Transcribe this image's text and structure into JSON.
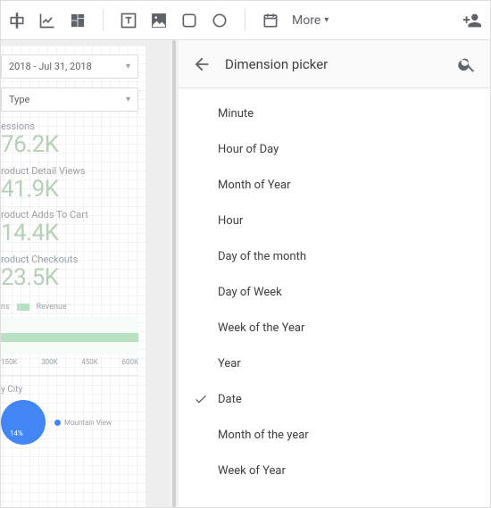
{
  "toolbar": {
    "more_label": "More"
  },
  "canvas": {
    "date_range": "2018 - Jul 31, 2018",
    "type_label": "Type",
    "metrics": [
      {
        "label": "essions",
        "value": "76.2K"
      },
      {
        "label": "roduct Detail Views",
        "value": "41.9K"
      },
      {
        "label": "roduct Adds To Cart",
        "value": "14.4K"
      },
      {
        "label": "roduct Checkouts",
        "value": "23.5K"
      }
    ],
    "legend": {
      "series": "ns",
      "series2": "Revenue",
      "bar_color": "#b7e1c1"
    },
    "xaxis": [
      "150K",
      "300K",
      "450K",
      "600K"
    ],
    "city_label": "y City",
    "pie": {
      "percent": "14%",
      "slice_color": "#4285f4",
      "legend_item": "Mountain View"
    }
  },
  "panel": {
    "title": "Dimension picker",
    "items": [
      {
        "label": "Minute",
        "selected": false
      },
      {
        "label": "Hour of Day",
        "selected": false
      },
      {
        "label": "Month of Year",
        "selected": false
      },
      {
        "label": "Hour",
        "selected": false
      },
      {
        "label": "Day of the month",
        "selected": false
      },
      {
        "label": "Day of Week",
        "selected": false
      },
      {
        "label": "Week of the Year",
        "selected": false
      },
      {
        "label": "Year",
        "selected": false
      },
      {
        "label": "Date",
        "selected": true
      },
      {
        "label": "Month of the year",
        "selected": false
      },
      {
        "label": "Week of Year",
        "selected": false
      }
    ]
  },
  "colors": {
    "metric_value": "#b7cfb7",
    "bg": "#ffffff"
  }
}
